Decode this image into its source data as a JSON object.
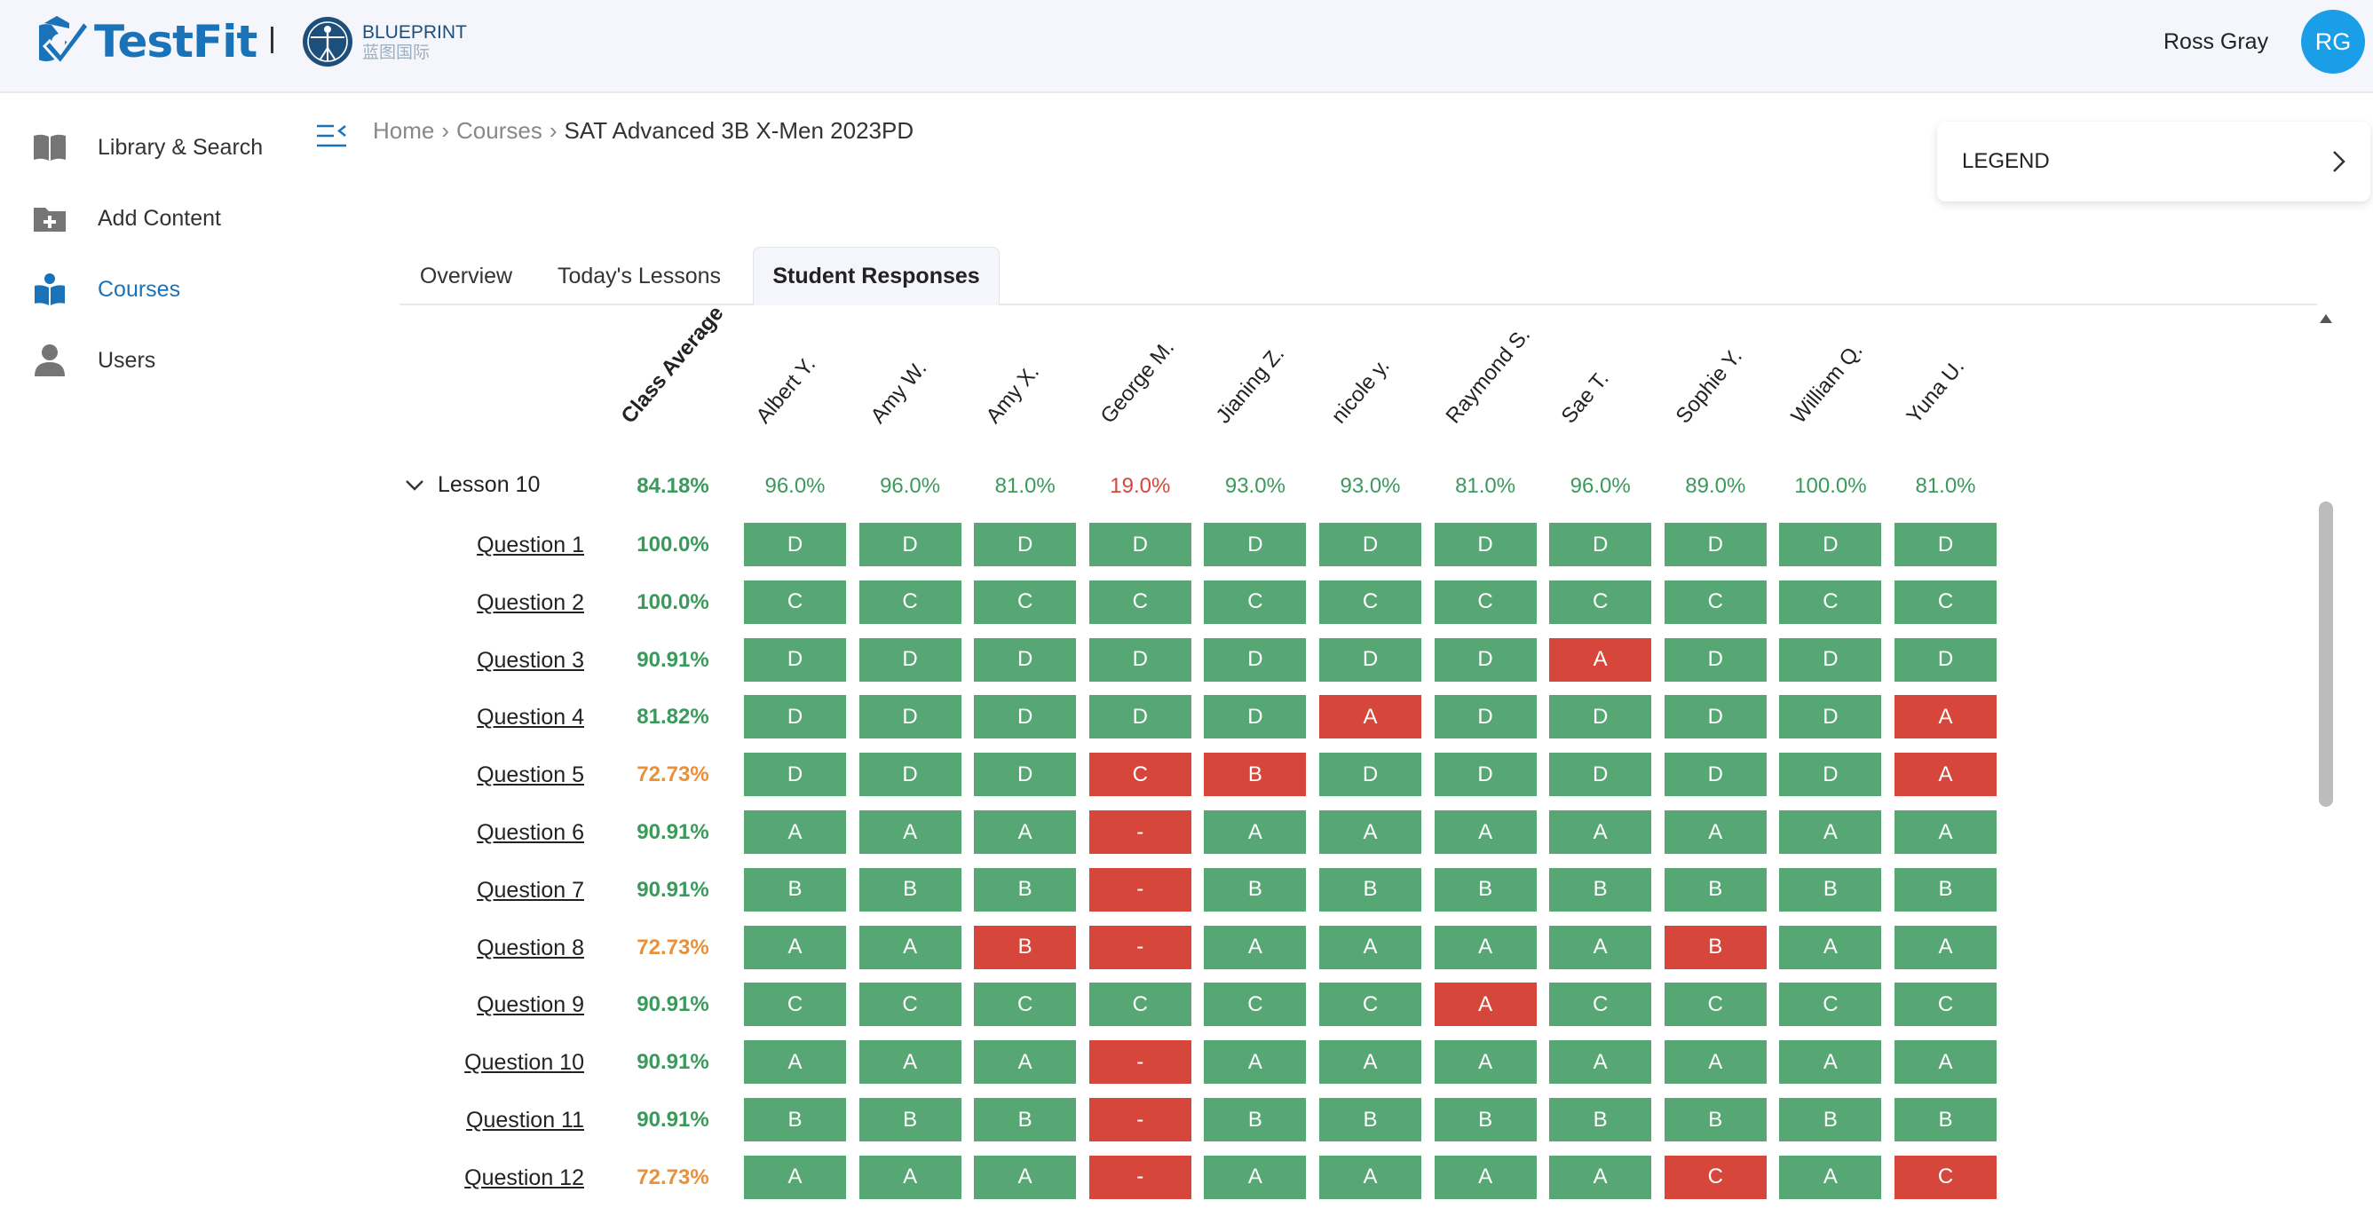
{
  "header": {
    "brand": "TestFit",
    "partner_title": "BLUEPRINT",
    "partner_subtitle": "蓝图国际",
    "user_name": "Ross Gray",
    "user_initials": "RG"
  },
  "sidebar": {
    "items": [
      {
        "label": "Library & Search",
        "icon": "book-icon"
      },
      {
        "label": "Add Content",
        "icon": "folder-add-icon"
      },
      {
        "label": "Courses",
        "icon": "courses-icon",
        "active": true
      },
      {
        "label": "Users",
        "icon": "user-icon"
      }
    ]
  },
  "breadcrumb": {
    "home": "Home",
    "sep1": "›",
    "courses": "Courses",
    "sep2": "›",
    "current": "SAT Advanced 3B X-Men 2023PD"
  },
  "legend": {
    "label": "LEGEND"
  },
  "tabs": [
    {
      "label": "Overview"
    },
    {
      "label": "Today's Lessons"
    },
    {
      "label": "Student Responses",
      "active": true
    }
  ],
  "colors": {
    "correct": "#56a774",
    "incorrect": "#d7463a",
    "avg_high": "#3a9a5b",
    "avg_mid": "#e8903a",
    "avg_low": "#d7463a",
    "accent": "#1a73b8"
  },
  "table": {
    "class_average_header": "Class Average",
    "students": [
      "Albert Y.",
      "Amy W.",
      "Amy X.",
      "George M.",
      "Jianing Z.",
      "nicole y.",
      "Raymond S.",
      "Sae T.",
      "Sophie Y.",
      "William Q.",
      "Yuna U."
    ],
    "lesson": {
      "label": "Lesson 10",
      "average": "84.18%",
      "student_scores": [
        "96.0%",
        "96.0%",
        "81.0%",
        "19.0%",
        "93.0%",
        "93.0%",
        "81.0%",
        "96.0%",
        "89.0%",
        "100.0%",
        "81.0%"
      ],
      "student_score_levels": [
        "high",
        "high",
        "high",
        "low",
        "high",
        "high",
        "high",
        "high",
        "high",
        "high",
        "high"
      ]
    },
    "questions": [
      {
        "label": "Question 1",
        "average": "100.0%",
        "avg_level": "high",
        "answers": [
          "D",
          "D",
          "D",
          "D",
          "D",
          "D",
          "D",
          "D",
          "D",
          "D",
          "D"
        ],
        "correct": [
          1,
          1,
          1,
          1,
          1,
          1,
          1,
          1,
          1,
          1,
          1
        ]
      },
      {
        "label": "Question 2",
        "average": "100.0%",
        "avg_level": "high",
        "answers": [
          "C",
          "C",
          "C",
          "C",
          "C",
          "C",
          "C",
          "C",
          "C",
          "C",
          "C"
        ],
        "correct": [
          1,
          1,
          1,
          1,
          1,
          1,
          1,
          1,
          1,
          1,
          1
        ]
      },
      {
        "label": "Question 3",
        "average": "90.91%",
        "avg_level": "high",
        "answers": [
          "D",
          "D",
          "D",
          "D",
          "D",
          "D",
          "D",
          "A",
          "D",
          "D",
          "D"
        ],
        "correct": [
          1,
          1,
          1,
          1,
          1,
          1,
          1,
          0,
          1,
          1,
          1
        ]
      },
      {
        "label": "Question 4",
        "average": "81.82%",
        "avg_level": "high",
        "answers": [
          "D",
          "D",
          "D",
          "D",
          "D",
          "A",
          "D",
          "D",
          "D",
          "D",
          "A"
        ],
        "correct": [
          1,
          1,
          1,
          1,
          1,
          0,
          1,
          1,
          1,
          1,
          0
        ]
      },
      {
        "label": "Question 5",
        "average": "72.73%",
        "avg_level": "mid",
        "answers": [
          "D",
          "D",
          "D",
          "C",
          "B",
          "D",
          "D",
          "D",
          "D",
          "D",
          "A"
        ],
        "correct": [
          1,
          1,
          1,
          0,
          0,
          1,
          1,
          1,
          1,
          1,
          0
        ]
      },
      {
        "label": "Question 6",
        "average": "90.91%",
        "avg_level": "high",
        "answers": [
          "A",
          "A",
          "A",
          "-",
          "A",
          "A",
          "A",
          "A",
          "A",
          "A",
          "A"
        ],
        "correct": [
          1,
          1,
          1,
          0,
          1,
          1,
          1,
          1,
          1,
          1,
          1
        ]
      },
      {
        "label": "Question 7",
        "average": "90.91%",
        "avg_level": "high",
        "answers": [
          "B",
          "B",
          "B",
          "-",
          "B",
          "B",
          "B",
          "B",
          "B",
          "B",
          "B"
        ],
        "correct": [
          1,
          1,
          1,
          0,
          1,
          1,
          1,
          1,
          1,
          1,
          1
        ]
      },
      {
        "label": "Question 8",
        "average": "72.73%",
        "avg_level": "mid",
        "answers": [
          "A",
          "A",
          "B",
          "-",
          "A",
          "A",
          "A",
          "A",
          "B",
          "A",
          "A"
        ],
        "correct": [
          1,
          1,
          0,
          0,
          1,
          1,
          1,
          1,
          0,
          1,
          1
        ]
      },
      {
        "label": "Question 9",
        "average": "90.91%",
        "avg_level": "high",
        "answers": [
          "C",
          "C",
          "C",
          "C",
          "C",
          "C",
          "A",
          "C",
          "C",
          "C",
          "C"
        ],
        "correct": [
          1,
          1,
          1,
          1,
          1,
          1,
          0,
          1,
          1,
          1,
          1
        ]
      },
      {
        "label": "Question 10",
        "average": "90.91%",
        "avg_level": "high",
        "answers": [
          "A",
          "A",
          "A",
          "-",
          "A",
          "A",
          "A",
          "A",
          "A",
          "A",
          "A"
        ],
        "correct": [
          1,
          1,
          1,
          0,
          1,
          1,
          1,
          1,
          1,
          1,
          1
        ]
      },
      {
        "label": "Question 11",
        "average": "90.91%",
        "avg_level": "high",
        "answers": [
          "B",
          "B",
          "B",
          "-",
          "B",
          "B",
          "B",
          "B",
          "B",
          "B",
          "B"
        ],
        "correct": [
          1,
          1,
          1,
          0,
          1,
          1,
          1,
          1,
          1,
          1,
          1
        ]
      },
      {
        "label": "Question 12",
        "average": "72.73%",
        "avg_level": "mid",
        "answers": [
          "A",
          "A",
          "A",
          "-",
          "A",
          "A",
          "A",
          "A",
          "C",
          "A",
          "C"
        ],
        "correct": [
          1,
          1,
          1,
          0,
          1,
          1,
          1,
          1,
          0,
          1,
          0
        ]
      }
    ]
  }
}
